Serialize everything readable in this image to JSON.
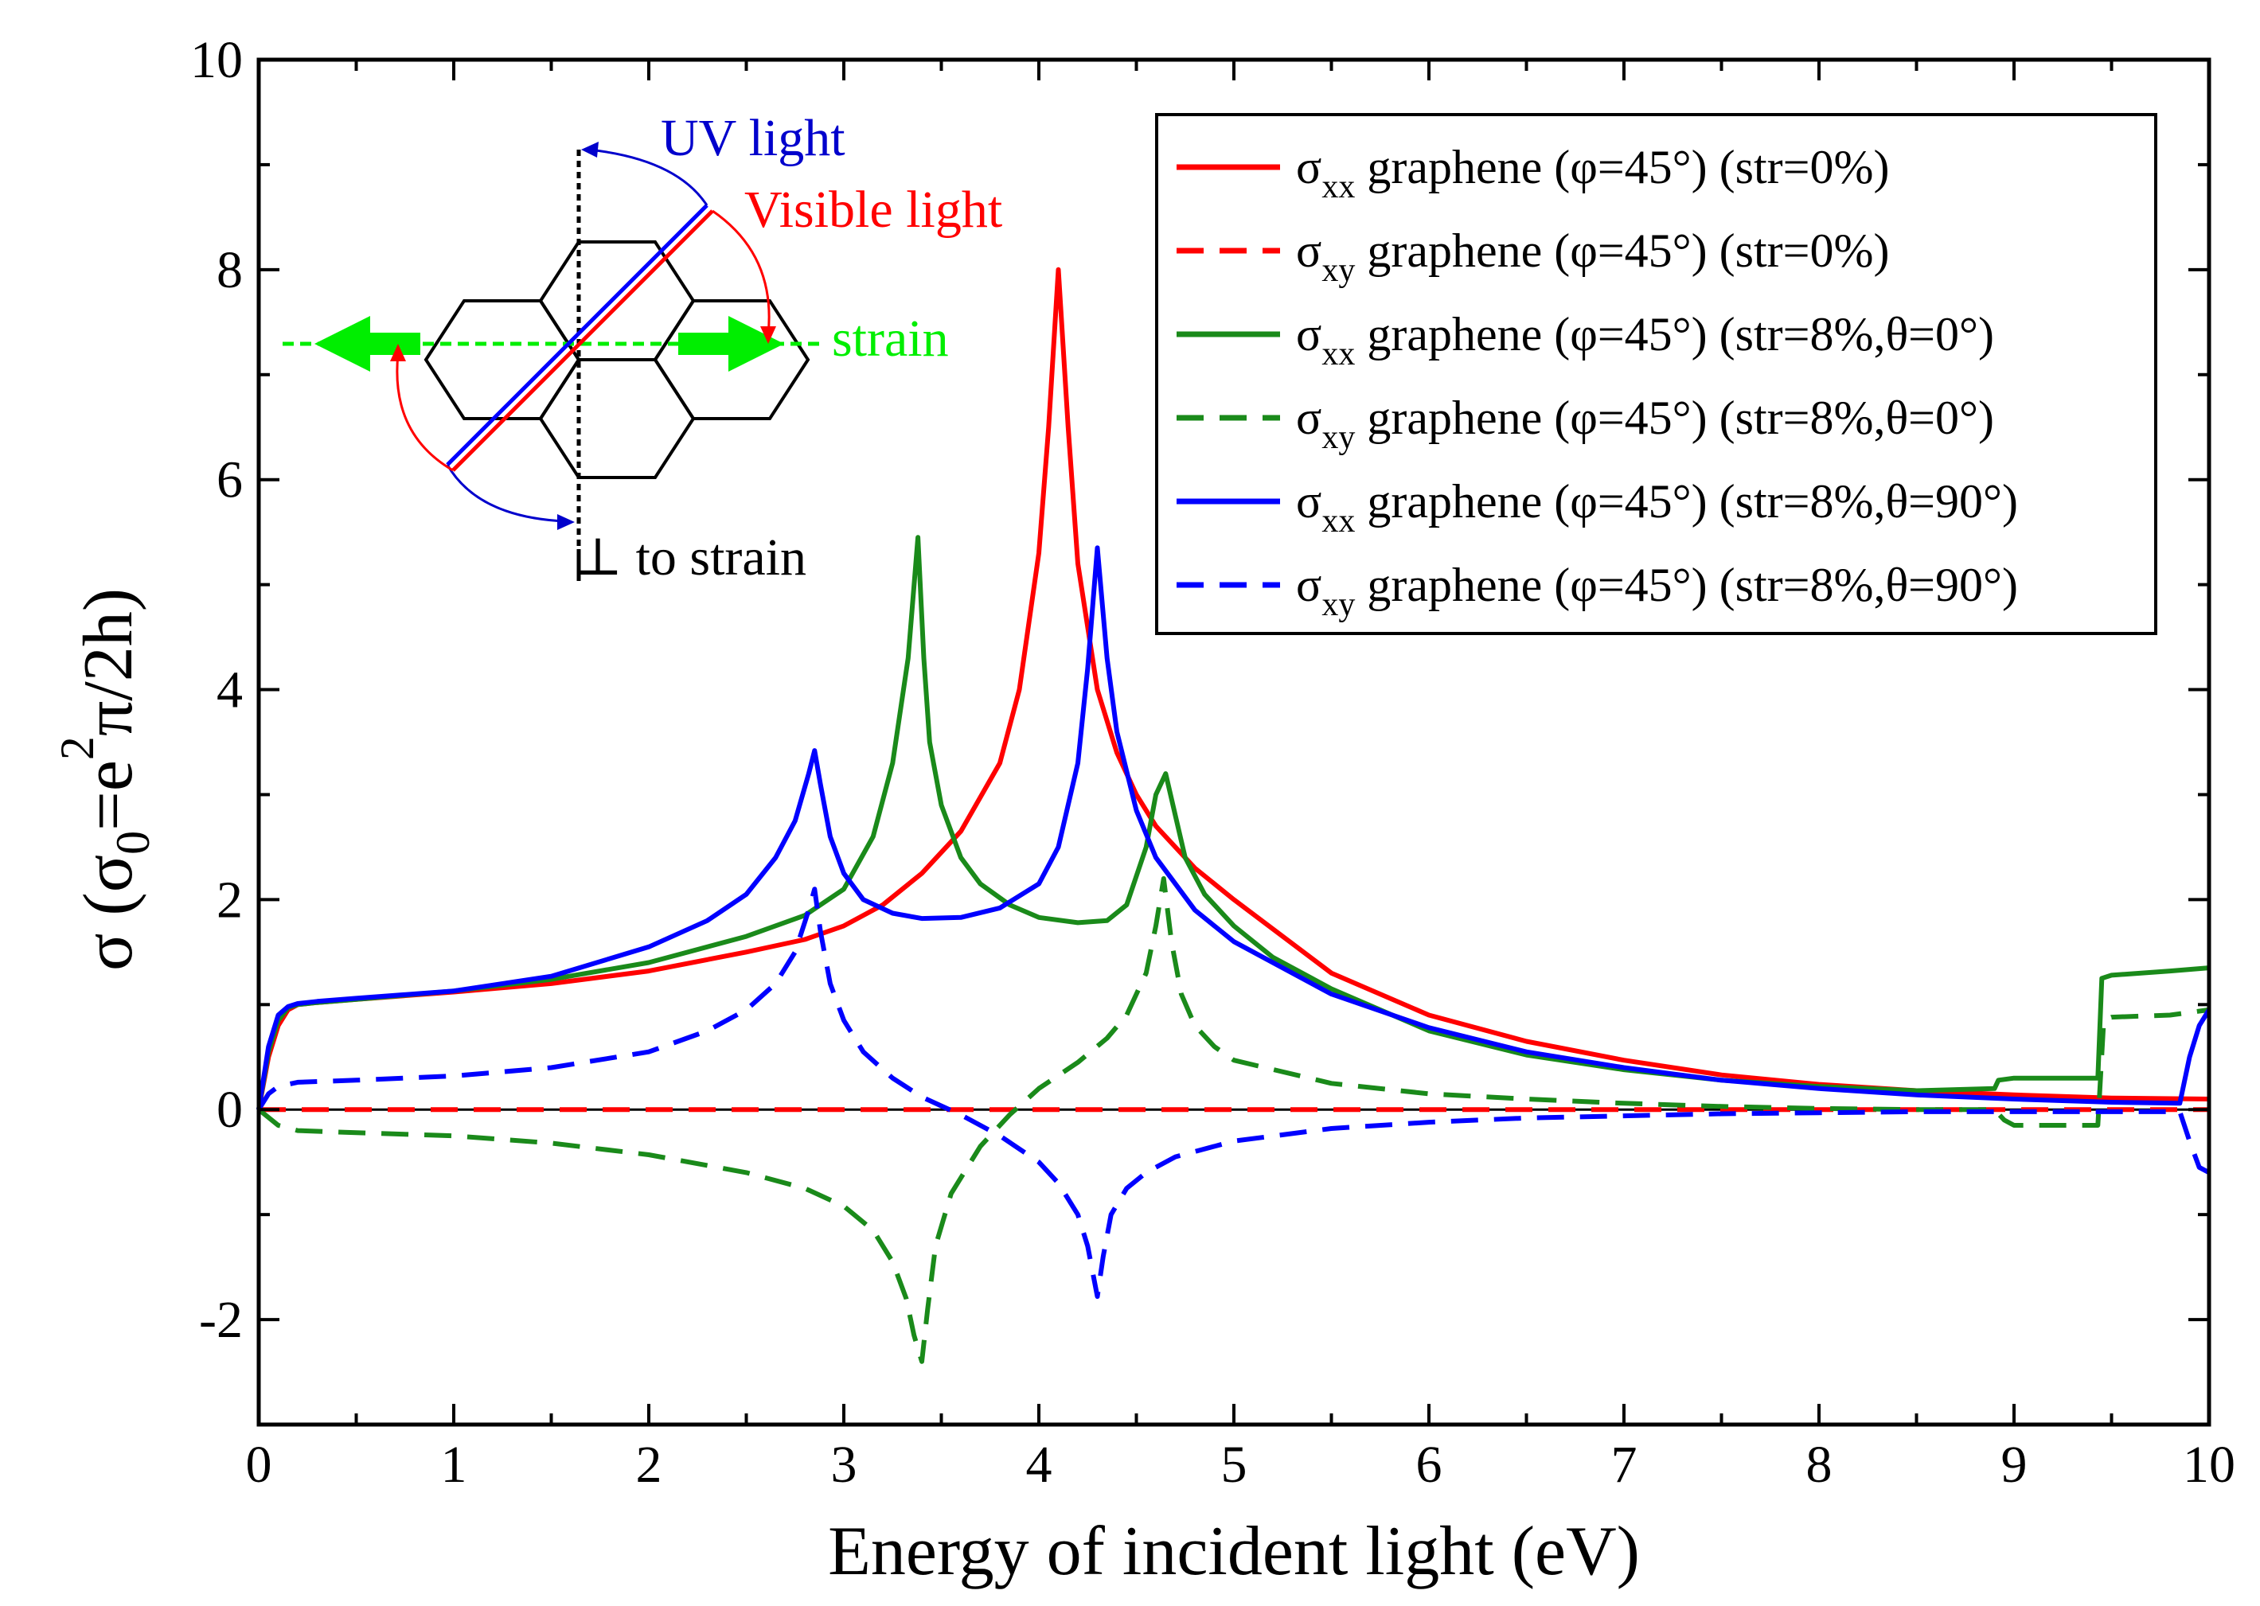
{
  "chart_data": {
    "type": "line",
    "title": "",
    "xlabel": "Energy of incident light (eV)",
    "ylabel": "σ (σ0=e2π/2h)",
    "ylabel_parts": {
      "sigma": "σ (σ",
      "sub0": "0",
      "eq": "=e",
      "sup2": "2",
      "rest": "π/2h)"
    },
    "xlim": [
      0,
      10
    ],
    "ylim": [
      -3,
      10
    ],
    "xticks": [
      0,
      1,
      2,
      3,
      4,
      5,
      6,
      7,
      8,
      9,
      10
    ],
    "yticks": [
      -2,
      0,
      2,
      4,
      6,
      8,
      10
    ],
    "xtick_labels": [
      "0",
      "1",
      "2",
      "3",
      "4",
      "5",
      "6",
      "7",
      "8",
      "9",
      "10"
    ],
    "ytick_labels": [
      "-2",
      "0",
      "2",
      "4",
      "6",
      "8",
      "10"
    ],
    "legend_position": "top-right",
    "series": [
      {
        "name": "σxx graphene (φ=45°) (str=0%)",
        "label": {
          "sym": "σ",
          "sub": "xx",
          "rest": " graphene (φ=45°) (str=0%)"
        },
        "color": "#ff0000",
        "dash": "solid",
        "x": [
          0,
          0.05,
          0.1,
          0.15,
          0.2,
          0.3,
          0.5,
          1,
          1.5,
          2,
          2.5,
          2.8,
          3,
          3.2,
          3.4,
          3.6,
          3.8,
          3.9,
          4,
          4.05,
          4.1,
          4.15,
          4.2,
          4.3,
          4.4,
          4.5,
          4.6,
          4.8,
          5,
          5.5,
          6,
          6.5,
          7,
          7.5,
          8,
          8.5,
          9,
          9.5,
          10
        ],
        "y": [
          0,
          0.5,
          0.8,
          0.95,
          1.0,
          1.02,
          1.05,
          1.12,
          1.2,
          1.32,
          1.5,
          1.62,
          1.75,
          1.95,
          2.25,
          2.65,
          3.3,
          4.0,
          5.3,
          6.5,
          8.0,
          6.5,
          5.2,
          4.0,
          3.4,
          3.0,
          2.7,
          2.3,
          2.0,
          1.3,
          0.9,
          0.65,
          0.47,
          0.33,
          0.24,
          0.18,
          0.14,
          0.11,
          0.1
        ]
      },
      {
        "name": "σxy graphene (φ=45°) (str=0%)",
        "label": {
          "sym": "σ",
          "sub": "xy",
          "rest": " graphene (φ=45°) (str=0%)"
        },
        "color": "#ff0000",
        "dash": "dashed",
        "x": [
          0,
          10
        ],
        "y": [
          0,
          0
        ]
      },
      {
        "name": "σxx graphene (φ=45°) (str=8%,θ=0°)",
        "label": {
          "sym": "σ",
          "sub": "xx",
          "rest": " graphene (φ=45°) (str=8%,θ=0°)"
        },
        "color": "#1a8a1a",
        "dash": "solid",
        "x": [
          0,
          0.05,
          0.1,
          0.15,
          0.2,
          0.3,
          0.5,
          1,
          1.5,
          2,
          2.5,
          2.8,
          3,
          3.15,
          3.25,
          3.33,
          3.38,
          3.41,
          3.44,
          3.5,
          3.6,
          3.7,
          3.85,
          4,
          4.2,
          4.35,
          4.45,
          4.55,
          4.6,
          4.65,
          4.7,
          4.75,
          4.85,
          5,
          5.2,
          5.5,
          6,
          6.5,
          7,
          7.5,
          8,
          8.5,
          8.9,
          8.92,
          9.0,
          9.3,
          9.43,
          9.45,
          9.5,
          9.8,
          10
        ],
        "y": [
          0,
          0.55,
          0.85,
          0.97,
          1.0,
          1.02,
          1.05,
          1.13,
          1.24,
          1.4,
          1.65,
          1.85,
          2.1,
          2.6,
          3.3,
          4.3,
          5.45,
          4.3,
          3.5,
          2.9,
          2.4,
          2.15,
          1.95,
          1.83,
          1.78,
          1.8,
          1.95,
          2.5,
          3.0,
          3.2,
          2.8,
          2.4,
          2.05,
          1.75,
          1.45,
          1.15,
          0.75,
          0.52,
          0.38,
          0.28,
          0.22,
          0.18,
          0.2,
          0.28,
          0.3,
          0.3,
          0.3,
          1.25,
          1.28,
          1.32,
          1.35
        ]
      },
      {
        "name": "σxy graphene (φ=45°) (str=8%,θ=0°)",
        "label": {
          "sym": "σ",
          "sub": "xy",
          "rest": " graphene (φ=45°) (str=8%,θ=0°)"
        },
        "color": "#1a8a1a",
        "dash": "dashed",
        "x": [
          0,
          0.1,
          0.2,
          0.5,
          1,
          1.5,
          2,
          2.5,
          2.8,
          3,
          3.15,
          3.25,
          3.32,
          3.36,
          3.4,
          3.43,
          3.47,
          3.55,
          3.7,
          3.85,
          4,
          4.2,
          4.35,
          4.45,
          4.55,
          4.6,
          4.64,
          4.68,
          4.73,
          4.8,
          4.9,
          5,
          5.5,
          6,
          6.5,
          7,
          7.5,
          8,
          8.5,
          8.9,
          8.95,
          9.0,
          9.3,
          9.43,
          9.46,
          9.5,
          9.8,
          10
        ],
        "y": [
          0,
          -0.15,
          -0.2,
          -0.22,
          -0.25,
          -0.32,
          -0.43,
          -0.6,
          -0.75,
          -0.92,
          -1.15,
          -1.45,
          -1.8,
          -2.15,
          -2.4,
          -1.9,
          -1.3,
          -0.8,
          -0.35,
          -0.05,
          0.2,
          0.45,
          0.68,
          0.9,
          1.3,
          1.75,
          2.2,
          1.6,
          1.1,
          0.8,
          0.6,
          0.47,
          0.25,
          0.15,
          0.1,
          0.06,
          0.03,
          0.01,
          0.0,
          0.0,
          -0.1,
          -0.15,
          -0.15,
          -0.15,
          0.85,
          0.88,
          0.9,
          0.95
        ]
      },
      {
        "name": "σxx graphene (φ=45°) (str=8%,θ=90°)",
        "label": {
          "sym": "σ",
          "sub": "xx",
          "rest": " graphene (φ=45°) (str=8%,θ=90°)"
        },
        "color": "#0000ff",
        "dash": "solid",
        "x": [
          0,
          0.05,
          0.1,
          0.15,
          0.2,
          0.3,
          0.5,
          1,
          1.5,
          2,
          2.3,
          2.5,
          2.65,
          2.75,
          2.82,
          2.85,
          2.88,
          2.93,
          3.0,
          3.1,
          3.25,
          3.4,
          3.6,
          3.8,
          4.0,
          4.1,
          4.2,
          4.25,
          4.3,
          4.35,
          4.4,
          4.5,
          4.6,
          4.8,
          5,
          5.5,
          6,
          6.5,
          7,
          7.5,
          8,
          8.5,
          9,
          9.5,
          9.85,
          9.9,
          9.95,
          10
        ],
        "y": [
          0,
          0.6,
          0.9,
          0.98,
          1.01,
          1.03,
          1.06,
          1.13,
          1.27,
          1.55,
          1.8,
          2.05,
          2.4,
          2.75,
          3.2,
          3.42,
          3.1,
          2.6,
          2.25,
          2.0,
          1.87,
          1.82,
          1.83,
          1.92,
          2.15,
          2.5,
          3.3,
          4.2,
          5.35,
          4.3,
          3.6,
          2.85,
          2.4,
          1.9,
          1.6,
          1.1,
          0.78,
          0.55,
          0.4,
          0.28,
          0.2,
          0.14,
          0.1,
          0.07,
          0.06,
          0.5,
          0.8,
          0.95
        ]
      },
      {
        "name": "σxy graphene (φ=45°) (str=8%,θ=90°)",
        "label": {
          "sym": "σ",
          "sub": "xy",
          "rest": " graphene (φ=45°) (str=8%,θ=90°)"
        },
        "color": "#0000ff",
        "dash": "dashed",
        "x": [
          0,
          0.05,
          0.1,
          0.2,
          0.5,
          1,
          1.5,
          2,
          2.3,
          2.5,
          2.65,
          2.75,
          2.82,
          2.85,
          2.88,
          2.93,
          3.0,
          3.1,
          3.25,
          3.4,
          3.6,
          3.8,
          4.0,
          4.1,
          4.2,
          4.25,
          4.3,
          4.33,
          4.37,
          4.45,
          4.55,
          4.7,
          5,
          5.5,
          6,
          6.5,
          7,
          7.5,
          8,
          8.5,
          9,
          9.5,
          9.85,
          9.9,
          9.95,
          10
        ],
        "y": [
          0,
          0.15,
          0.22,
          0.26,
          0.28,
          0.32,
          0.4,
          0.55,
          0.75,
          0.95,
          1.2,
          1.5,
          1.9,
          2.1,
          1.7,
          1.2,
          0.85,
          0.55,
          0.3,
          0.12,
          -0.05,
          -0.25,
          -0.5,
          -0.7,
          -1.0,
          -1.3,
          -1.78,
          -1.4,
          -1.0,
          -0.75,
          -0.6,
          -0.45,
          -0.3,
          -0.18,
          -0.12,
          -0.08,
          -0.06,
          -0.04,
          -0.03,
          -0.02,
          -0.02,
          -0.02,
          -0.02,
          -0.3,
          -0.55,
          -0.6
        ]
      }
    ],
    "annotations": {
      "uv_light": "UV light",
      "visible_light": "Visible light",
      "strain": "strain",
      "perp_symbol": "⊥",
      "perp_text": " to strain"
    },
    "colors": {
      "red": "#ff0000",
      "green": "#1a8a1a",
      "blue": "#0000ff",
      "strain_green": "#00ee00",
      "uv_blue": "#0000cc"
    }
  }
}
